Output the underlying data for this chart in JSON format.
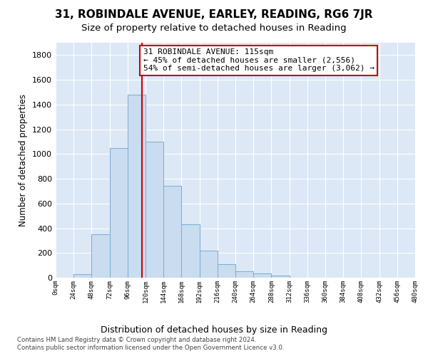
{
  "title_line1": "31, ROBINDALE AVENUE, EARLEY, READING, RG6 7JR",
  "title_line2": "Size of property relative to detached houses in Reading",
  "xlabel": "Distribution of detached houses by size in Reading",
  "ylabel": "Number of detached properties",
  "bar_edges": [
    0,
    24,
    48,
    72,
    96,
    120,
    144,
    168,
    192,
    216,
    240,
    264,
    288,
    312,
    336,
    360,
    384,
    408,
    432,
    456,
    480
  ],
  "bar_heights": [
    0,
    30,
    350,
    1050,
    1480,
    1100,
    740,
    430,
    220,
    110,
    50,
    35,
    20,
    0,
    0,
    0,
    0,
    0,
    0,
    0
  ],
  "bar_color": "#c9dcf0",
  "bar_edge_color": "#7aadd4",
  "property_size": 115,
  "vline_color": "#cc0000",
  "annotation_text": "31 ROBINDALE AVENUE: 115sqm\n← 45% of detached houses are smaller (2,556)\n54% of semi-detached houses are larger (3,062) →",
  "annotation_bbox_color": "white",
  "annotation_bbox_edge": "#cc0000",
  "ylim": [
    0,
    1900
  ],
  "yticks": [
    0,
    200,
    400,
    600,
    800,
    1000,
    1200,
    1400,
    1600,
    1800
  ],
  "background_color": "#dce8f5",
  "plot_bg_color": "#dce8f5",
  "footer_line1": "Contains HM Land Registry data © Crown copyright and database right 2024.",
  "footer_line2": "Contains public sector information licensed under the Open Government Licence v3.0.",
  "title1_fontsize": 11,
  "title2_fontsize": 9.5,
  "annotation_fontsize": 8,
  "tick_labels": [
    "0sqm",
    "24sqm",
    "48sqm",
    "72sqm",
    "96sqm",
    "120sqm",
    "144sqm",
    "168sqm",
    "192sqm",
    "216sqm",
    "240sqm",
    "264sqm",
    "288sqm",
    "312sqm",
    "336sqm",
    "360sqm",
    "384sqm",
    "408sqm",
    "432sqm",
    "456sqm",
    "480sqm"
  ]
}
